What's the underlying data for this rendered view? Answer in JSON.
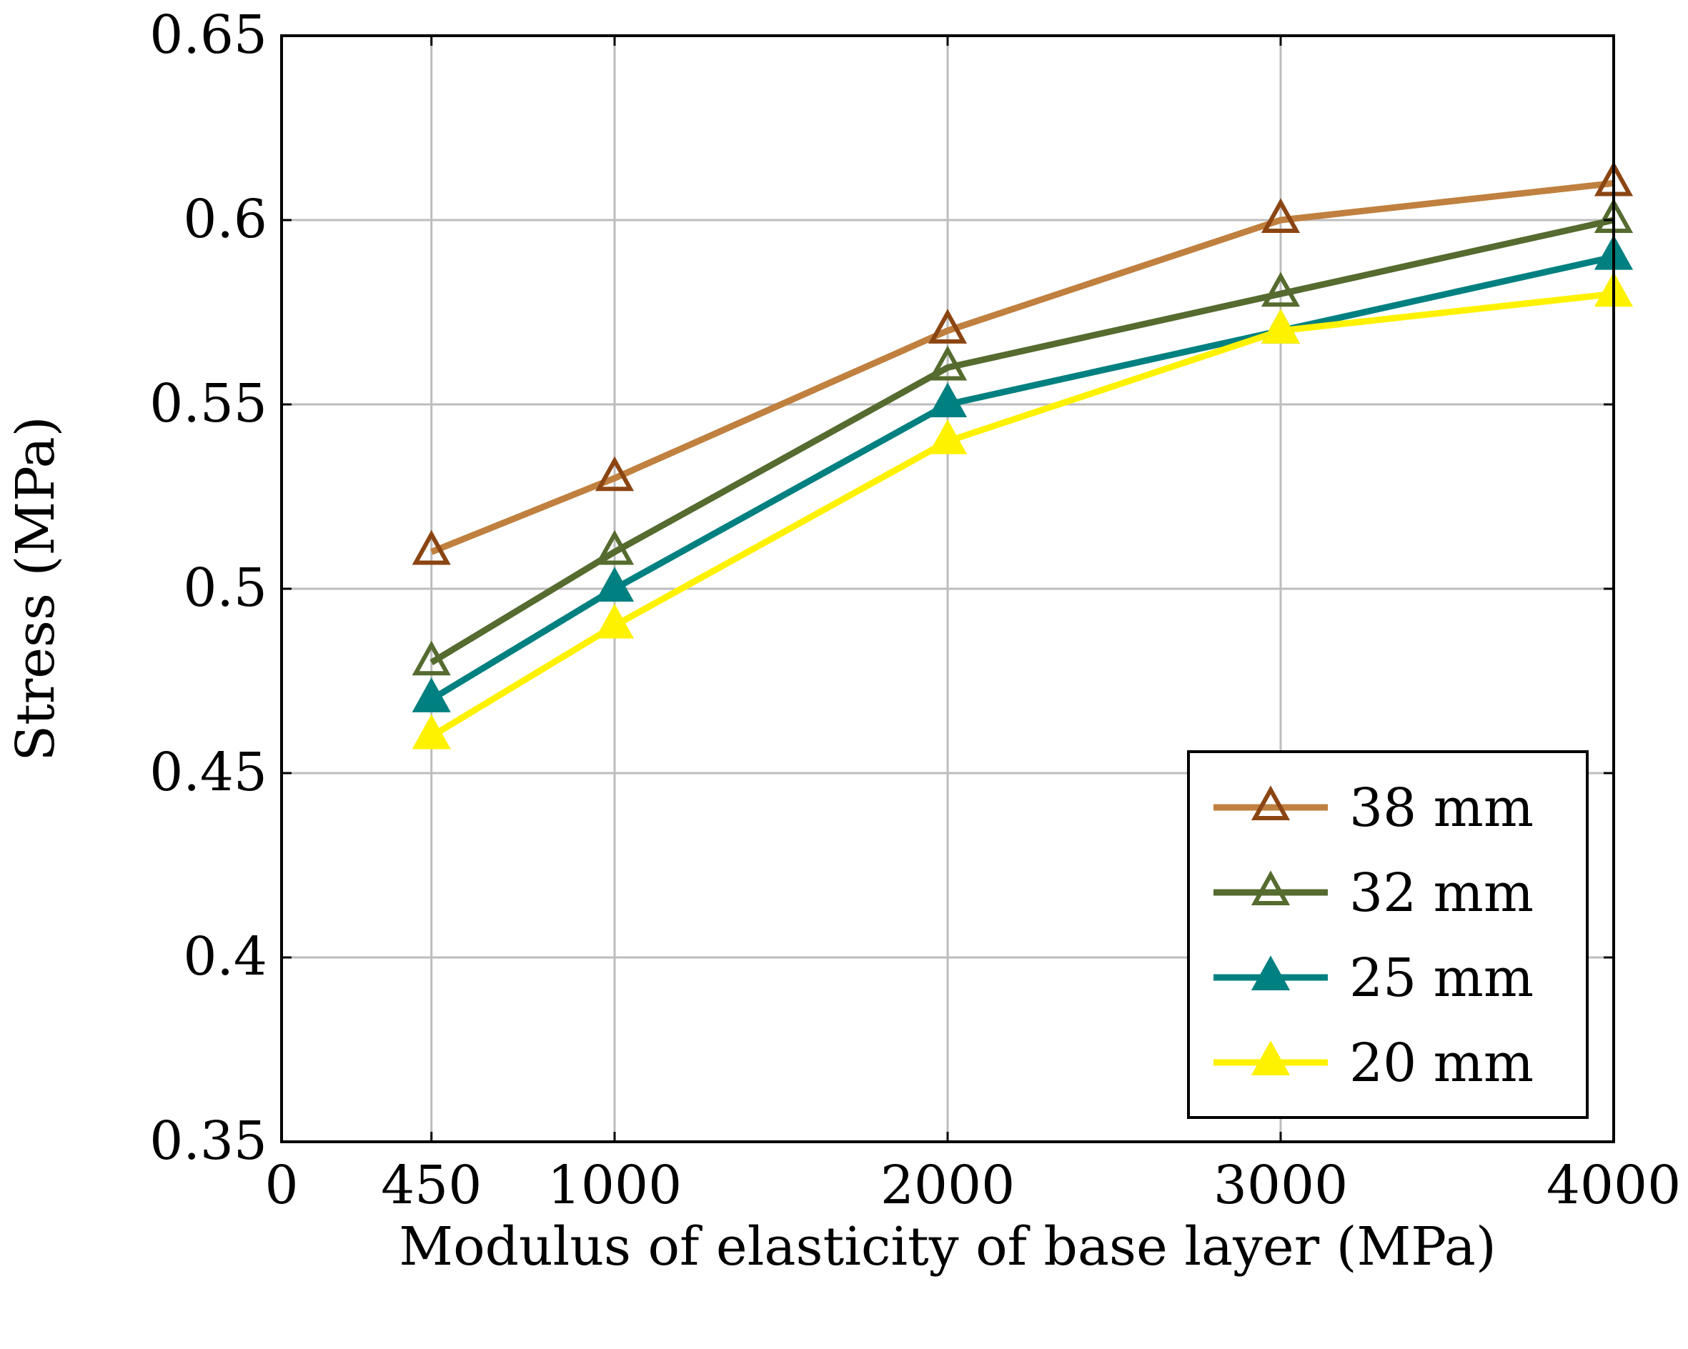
{
  "chart_data": {
    "type": "line",
    "title": "",
    "xlabel": "Modulus of elasticity of base layer (MPa)",
    "ylabel": "Stress (MPa)",
    "x": [
      450,
      1000,
      2000,
      3000,
      4000
    ],
    "xlim": [
      0,
      4000
    ],
    "ylim": [
      0.35,
      0.65
    ],
    "xticks": [
      0,
      450,
      1000,
      2000,
      3000,
      4000
    ],
    "xtick_labels": [
      "0",
      "450",
      "1000",
      "2000",
      "3000",
      "4000"
    ],
    "yticks": [
      0.35,
      0.4,
      0.45,
      0.5,
      0.55,
      0.6,
      0.65
    ],
    "ytick_labels": [
      "0.35",
      "0.4",
      "0.45",
      "0.5",
      "0.55",
      "0.6",
      "0.65"
    ],
    "grid": true,
    "legend_position": "bottom-right",
    "series": [
      {
        "name": "38 mm",
        "values": [
          0.51,
          0.53,
          0.57,
          0.6,
          0.61
        ],
        "line_color": "#C0803F",
        "marker_color": "#8B4513",
        "marker_filled": false
      },
      {
        "name": "32 mm",
        "values": [
          0.48,
          0.51,
          0.56,
          0.58,
          0.6
        ],
        "line_color": "#556B2F",
        "marker_color": "#556B2F",
        "marker_filled": false
      },
      {
        "name": "25 mm",
        "values": [
          0.47,
          0.5,
          0.55,
          0.57,
          0.59
        ],
        "line_color": "#008080",
        "marker_color": "#008080",
        "marker_filled": true
      },
      {
        "name": "20 mm",
        "values": [
          0.46,
          0.49,
          0.54,
          0.57,
          0.58
        ],
        "line_color": "#FFF200",
        "marker_color": "#FFF200",
        "marker_filled": true
      }
    ]
  }
}
